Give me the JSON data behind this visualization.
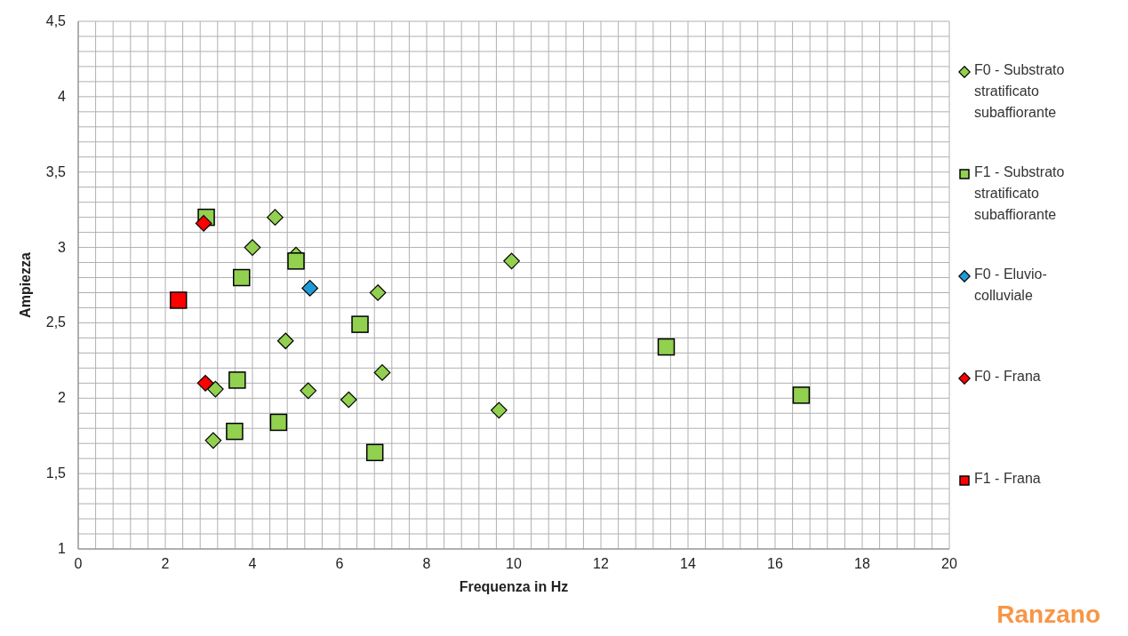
{
  "chart_data": {
    "type": "scatter",
    "xlabel": "Frequenza in Hz",
    "ylabel": "Ampiezza",
    "annotations": [
      "Ranzano"
    ],
    "xlim": [
      0,
      20
    ],
    "ylim": [
      1,
      4.5
    ],
    "xticks": [
      0,
      {
        "value": 0.4,
        "label": null
      },
      {
        "value": 0.8,
        "label": null
      },
      {
        "value": 1.2,
        "label": null
      },
      {
        "value": 1.6,
        "label": null
      },
      2,
      {
        "value": 2.4,
        "label": null
      },
      {
        "value": 2.8,
        "label": null
      },
      {
        "value": 3.2,
        "label": null
      },
      {
        "value": 3.6,
        "label": null
      },
      4,
      {
        "value": 4.4,
        "label": null
      },
      {
        "value": 4.8,
        "label": null
      },
      {
        "value": 5.2,
        "label": null
      },
      {
        "value": 5.6,
        "label": null
      },
      6,
      {
        "value": 6.4,
        "label": null
      },
      {
        "value": 6.8,
        "label": null
      },
      {
        "value": 7.2,
        "label": null
      },
      {
        "value": 7.6,
        "label": null
      },
      8,
      {
        "value": 8.4,
        "label": null
      },
      {
        "value": 8.8,
        "label": null
      },
      {
        "value": 9.2,
        "label": null
      },
      {
        "value": 9.6,
        "label": null
      },
      10,
      {
        "value": 10.4,
        "label": null
      },
      {
        "value": 10.8,
        "label": null
      },
      {
        "value": 11.2,
        "label": null
      },
      {
        "value": 11.6,
        "label": null
      },
      12,
      {
        "value": 12.4,
        "label": null
      },
      {
        "value": 12.8,
        "label": null
      },
      {
        "value": 13.2,
        "label": null
      },
      {
        "value": 13.6,
        "label": null
      },
      14,
      {
        "value": 14.4,
        "label": null
      },
      {
        "value": 14.8,
        "label": null
      },
      {
        "value": 15.2,
        "label": null
      },
      {
        "value": 15.6,
        "label": null
      },
      16,
      {
        "value": 16.4,
        "label": null
      },
      {
        "value": 16.8,
        "label": null
      },
      {
        "value": 17.2,
        "label": null
      },
      {
        "value": 17.6,
        "label": null
      },
      18,
      {
        "value": 18.4,
        "label": null
      },
      {
        "value": 18.8,
        "label": null
      },
      {
        "value": 19.2,
        "label": null
      },
      {
        "value": 19.6,
        "label": null
      },
      20
    ],
    "yticks": [
      1,
      {
        "value": 1.1,
        "label": null
      },
      {
        "value": 1.2,
        "label": null
      },
      {
        "value": 1.3,
        "label": null
      },
      {
        "value": 1.4,
        "label": null
      },
      {
        "value": 1.5,
        "label": "1,5"
      },
      {
        "value": 1.6,
        "label": null
      },
      {
        "value": 1.7,
        "label": null
      },
      {
        "value": 1.8,
        "label": null
      },
      {
        "value": 1.9,
        "label": null
      },
      2,
      {
        "value": 2.1,
        "label": null
      },
      {
        "value": 2.2,
        "label": null
      },
      {
        "value": 2.3,
        "label": null
      },
      {
        "value": 2.4,
        "label": null
      },
      {
        "value": 2.5,
        "label": "2,5"
      },
      {
        "value": 2.6,
        "label": null
      },
      {
        "value": 2.7,
        "label": null
      },
      {
        "value": 2.8,
        "label": null
      },
      {
        "value": 2.9,
        "label": null
      },
      3,
      {
        "value": 3.1,
        "label": null
      },
      {
        "value": 3.2,
        "label": null
      },
      {
        "value": 3.3,
        "label": null
      },
      {
        "value": 3.4,
        "label": null
      },
      {
        "value": 3.5,
        "label": "3,5"
      },
      {
        "value": 3.6,
        "label": null
      },
      {
        "value": 3.7,
        "label": null
      },
      {
        "value": 3.8,
        "label": null
      },
      {
        "value": 3.9,
        "label": null
      },
      4,
      {
        "value": 4.1,
        "label": null
      },
      {
        "value": 4.2,
        "label": null
      },
      {
        "value": 4.3,
        "label": null
      },
      {
        "value": 4.4,
        "label": null
      },
      {
        "value": 4.5,
        "label": "4,5"
      }
    ],
    "grid": true,
    "legend": "right",
    "series": [
      {
        "name": "F0 - Substrato stratificato subaffiorante",
        "color": "#92d050",
        "marker": "diamond",
        "x": [
          4.52,
          4.0,
          5.0,
          9.95,
          6.88,
          4.76,
          6.98,
          3.15,
          5.28,
          6.21,
          9.66,
          3.1
        ],
        "values": [
          3.2,
          3.0,
          2.95,
          2.91,
          2.7,
          2.38,
          2.17,
          2.06,
          2.05,
          1.99,
          1.92,
          1.72
        ]
      },
      {
        "name": "F1 - Substrato stratificato subaffiorante",
        "color": "#92d050",
        "marker": "square",
        "x": [
          2.94,
          5.0,
          3.75,
          6.47,
          13.5,
          16.6,
          3.65,
          3.59,
          4.6,
          6.81
        ],
        "values": [
          3.2,
          2.91,
          2.8,
          2.49,
          2.34,
          2.02,
          2.12,
          1.78,
          1.84,
          1.64
        ]
      },
      {
        "name": "F0 - Eluvio-colluviale",
        "color": "#1f9ad6",
        "marker": "diamond",
        "x": [
          5.32
        ],
        "values": [
          2.73
        ]
      },
      {
        "name": "F0 - Frana",
        "color": "#ff0000",
        "marker": "diamond",
        "x": [
          2.88,
          2.92
        ],
        "values": [
          3.16,
          2.1
        ]
      },
      {
        "name": "F1 - Frana",
        "color": "#ff0000",
        "marker": "square",
        "x": [
          2.3
        ],
        "values": [
          2.65
        ]
      }
    ]
  }
}
